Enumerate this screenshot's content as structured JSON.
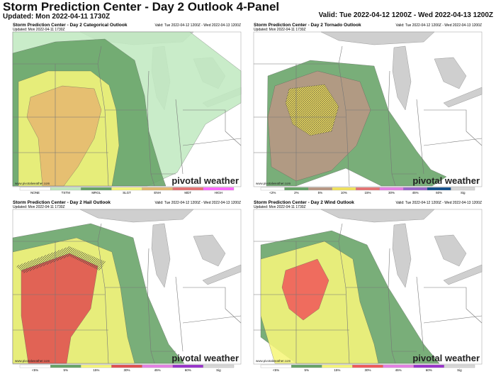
{
  "header": {
    "title": "Storm Prediction Center - Day 2 Outlook 4-Panel",
    "updated": "Updated: Mon 2022-04-11 1730Z",
    "valid": "Valid: Tue 2022-04-12 1200Z - Wed 2022-04-13 1200Z"
  },
  "panels": [
    {
      "title": "Storm Prediction Center - Day 2 Categorical Outlook",
      "updated": "Updated: Mon 2022-04-11 1730Z",
      "valid": "Valid: Tue 2022-04-12 1200Z - Wed 2022-04-13 1200Z",
      "site": "www.pivotalweather.com",
      "watermark": "pivotal weather",
      "legend": [
        {
          "label": "NONE",
          "color": "#ffffff"
        },
        {
          "label": "TSTM",
          "color": "#c1e9c1"
        },
        {
          "label": "MRGL",
          "color": "#66a366"
        },
        {
          "label": "SLGT",
          "color": "#f6f67b"
        },
        {
          "label": "ENH",
          "color": "#e6b870"
        },
        {
          "label": "MDT",
          "color": "#e67373"
        },
        {
          "label": "HIGH",
          "color": "#ff66ff"
        }
      ]
    },
    {
      "title": "Storm Prediction Center - Day 2 Tornado Outlook",
      "updated": "Updated: Mon 2022-04-11 1730Z",
      "valid": "Valid: Tue 2022-04-12 1200Z - Wed 2022-04-13 1200Z",
      "site": "www.pivotalweather.com",
      "watermark": "pivotal weather",
      "legend": [
        {
          "label": "<2%",
          "color": "#ffffff"
        },
        {
          "label": "2%",
          "color": "#66a366"
        },
        {
          "label": "5%",
          "color": "#b89784"
        },
        {
          "label": "10%",
          "color": "#f2e35c"
        },
        {
          "label": "15%",
          "color": "#e67373"
        },
        {
          "label": "30%",
          "color": "#e680e6"
        },
        {
          "label": "45%",
          "color": "#9966cc"
        },
        {
          "label": "60%",
          "color": "#104e8b"
        },
        {
          "label": "Sig",
          "color": "#d8d8d8"
        }
      ]
    },
    {
      "title": "Storm Prediction Center - Day 2 Hail Outlook",
      "updated": "Updated: Mon 2022-04-11 1730Z",
      "valid": "Valid: Tue 2022-04-12 1200Z - Wed 2022-04-13 1200Z",
      "site": "www.pivotalweather.com",
      "watermark": "pivotal weather",
      "legend": [
        {
          "label": "<5%",
          "color": "#ffffff"
        },
        {
          "label": "5%",
          "color": "#66a366"
        },
        {
          "label": "15%",
          "color": "#f6f67b"
        },
        {
          "label": "30%",
          "color": "#e05050"
        },
        {
          "label": "45%",
          "color": "#e680e6"
        },
        {
          "label": "60%",
          "color": "#9933cc"
        },
        {
          "label": "Sig",
          "color": "#d8d8d8"
        }
      ]
    },
    {
      "title": "Storm Prediction Center - Day 2 Wind Outlook",
      "updated": "Updated: Mon 2022-04-11 1730Z",
      "valid": "Valid: Tue 2022-04-12 1200Z - Wed 2022-04-13 1200Z",
      "site": "www.pivotalweather.com",
      "watermark": "pivotal weather",
      "legend": [
        {
          "label": "<5%",
          "color": "#ffffff"
        },
        {
          "label": "5%",
          "color": "#66a366"
        },
        {
          "label": "15%",
          "color": "#f6f67b"
        },
        {
          "label": "30%",
          "color": "#f05a5a"
        },
        {
          "label": "45%",
          "color": "#e680e6"
        },
        {
          "label": "60%",
          "color": "#9933cc"
        },
        {
          "label": "Sig",
          "color": "#d8d8d8"
        }
      ]
    }
  ]
}
